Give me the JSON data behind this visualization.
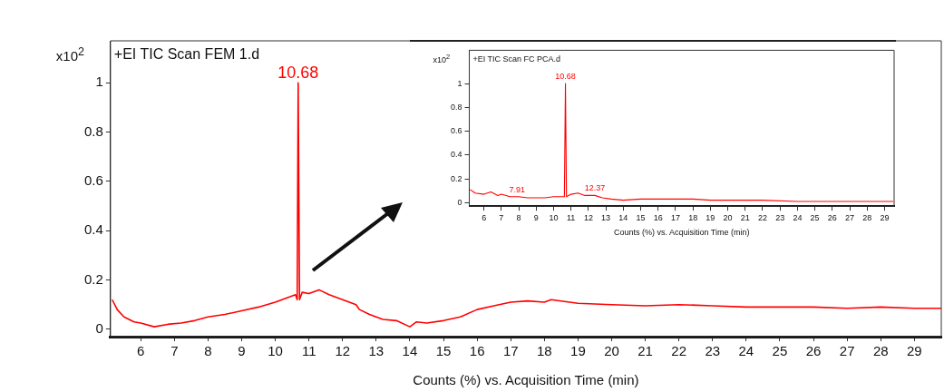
{
  "chart_data": [
    {
      "type": "line",
      "title": "+EI TIC Scan FEM 1.d",
      "xlabel": "Counts (%) vs. Acquisition Time (min)",
      "ylabel": "x10$^{2}$",
      "x": [
        5.15,
        5.3,
        5.5,
        5.8,
        6.0,
        6.4,
        6.8,
        7.2,
        7.6,
        8.0,
        8.5,
        9.0,
        9.5,
        10.0,
        10.4,
        10.6,
        10.65,
        10.68,
        10.72,
        10.8,
        11.0,
        11.3,
        11.6,
        12.0,
        12.4,
        12.5,
        12.8,
        13.2,
        13.6,
        14.0,
        14.2,
        14.5,
        15.0,
        15.5,
        16.0,
        16.5,
        17.0,
        17.5,
        18.0,
        18.2,
        19.0,
        20.0,
        21.0,
        22.0,
        23.0,
        24.0,
        25.0,
        26.0,
        27.0,
        28.0,
        29.0,
        29.8
      ],
      "series": [
        {
          "color": "#ff0000",
          "values": [
            0.12,
            0.08,
            0.05,
            0.03,
            0.025,
            0.01,
            0.02,
            0.025,
            0.035,
            0.05,
            0.06,
            0.075,
            0.09,
            0.11,
            0.13,
            0.14,
            0.12,
            1.0,
            0.12,
            0.15,
            0.145,
            0.16,
            0.14,
            0.12,
            0.1,
            0.08,
            0.06,
            0.04,
            0.035,
            0.01,
            0.03,
            0.025,
            0.035,
            0.05,
            0.08,
            0.095,
            0.11,
            0.115,
            0.11,
            0.12,
            0.105,
            0.1,
            0.095,
            0.1,
            0.095,
            0.09,
            0.09,
            0.09,
            0.085,
            0.09,
            0.085,
            0.085
          ]
        }
      ],
      "annotations": [
        {
          "text": "10.68",
          "x": 10.68,
          "y": 1.0
        }
      ],
      "xlim": [
        5.1,
        29.8
      ],
      "ylim": [
        -0.03,
        1.17
      ],
      "xticks": [
        6,
        7,
        8,
        9,
        10,
        11,
        12,
        13,
        14,
        15,
        16,
        17,
        18,
        19,
        20,
        21,
        22,
        23,
        24,
        25,
        26,
        27,
        28,
        29
      ],
      "yticks": [
        0,
        0.2,
        0.4,
        0.6,
        0.8,
        1
      ]
    },
    {
      "type": "line",
      "title": "+EI TIC Scan FC PCA.d",
      "xlabel": "Counts (%) vs. Acquisition Time (min)",
      "ylabel": "x10$^{2}$",
      "x": [
        5.2,
        5.5,
        6.0,
        6.4,
        6.8,
        7.0,
        7.5,
        8.0,
        8.5,
        9.0,
        9.5,
        10.0,
        10.5,
        10.62,
        10.68,
        10.74,
        11.0,
        11.4,
        11.8,
        12.37,
        12.8,
        13.3,
        14.0,
        15.0,
        16.0,
        17.0,
        18.0,
        19.0,
        20.0,
        22.0,
        24.0,
        26.0,
        28.0,
        29.5
      ],
      "series": [
        {
          "color": "#ff0000",
          "values": [
            0.11,
            0.08,
            0.07,
            0.09,
            0.06,
            0.07,
            0.05,
            0.05,
            0.04,
            0.04,
            0.04,
            0.05,
            0.05,
            0.05,
            1.0,
            0.05,
            0.07,
            0.08,
            0.06,
            0.06,
            0.04,
            0.03,
            0.02,
            0.03,
            0.03,
            0.03,
            0.03,
            0.02,
            0.02,
            0.02,
            0.01,
            0.01,
            0.01,
            0.01
          ]
        }
      ],
      "annotations": [
        {
          "text": "10.68",
          "x": 10.68,
          "y": 1.0
        },
        {
          "text": "7.91",
          "x": 7.91,
          "y": 0.05
        },
        {
          "text": "12.37",
          "x": 12.37,
          "y": 0.06
        }
      ],
      "xlim": [
        5.16,
        29.55
      ],
      "ylim": [
        -0.03,
        1.28
      ],
      "xticks": [
        6,
        7,
        8,
        9,
        10,
        11,
        12,
        13,
        14,
        15,
        16,
        17,
        18,
        19,
        20,
        21,
        22,
        23,
        24,
        25,
        26,
        27,
        28,
        29
      ],
      "yticks": [
        0,
        0.2,
        0.4,
        0.6,
        0.8,
        1
      ]
    }
  ]
}
